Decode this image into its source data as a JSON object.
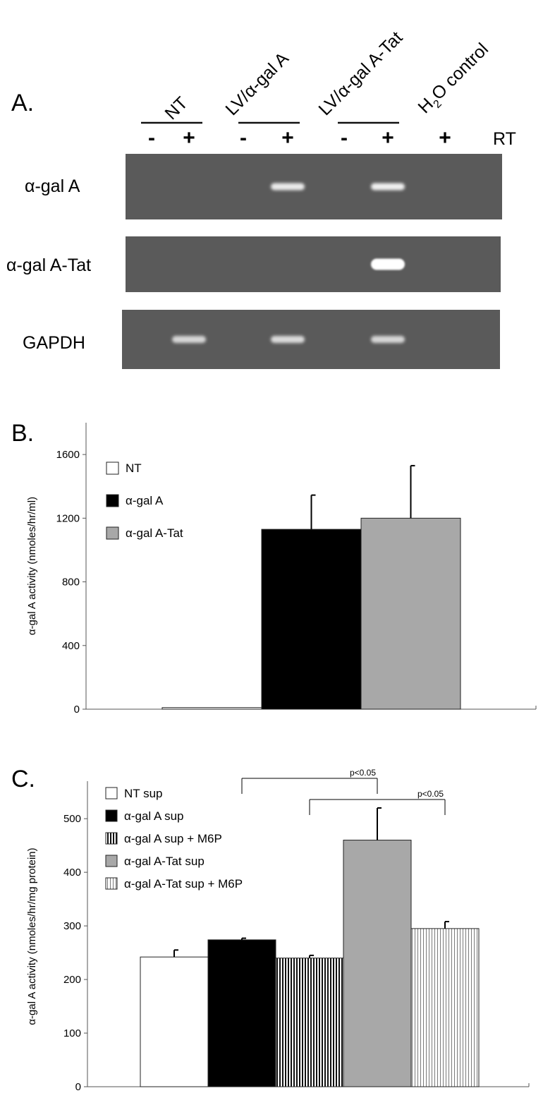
{
  "panel_a": {
    "letter": "A.",
    "groups": [
      "NT",
      "LV/α-gal A",
      "LV/α-gal A-Tat"
    ],
    "water_control": {
      "prefix": "H",
      "subscript": "2",
      "suffix": "O control"
    },
    "rt_signs": [
      "-",
      "+",
      "-",
      "+",
      "-",
      "+",
      "+"
    ],
    "rt_label": "RT",
    "gels": [
      {
        "label": "α-gal A",
        "bands": [
          {
            "lane": 4,
            "intensity": 0.8
          },
          {
            "lane": 6,
            "intensity": 0.85
          }
        ]
      },
      {
        "label": "α-gal A-Tat",
        "bands": [
          {
            "lane": 6,
            "intensity": 1.0
          }
        ]
      },
      {
        "label": "GAPDH",
        "bands": [
          {
            "lane": 2,
            "intensity": 0.6
          },
          {
            "lane": 4,
            "intensity": 0.65
          },
          {
            "lane": 6,
            "intensity": 0.6
          }
        ]
      }
    ]
  },
  "chart_data": [
    {
      "panel": "B.",
      "type": "bar",
      "ylabel": "α-gal A activity (nmoles/hr/ml)",
      "ylim": [
        0,
        1800
      ],
      "yticks": [
        0,
        400,
        800,
        1200,
        1600
      ],
      "legend_placement": "top-left",
      "series": [
        {
          "name": "NT",
          "value": 10,
          "error": 0,
          "fill": "white"
        },
        {
          "name": "α-gal A",
          "value": 1130,
          "error": 215,
          "fill": "black"
        },
        {
          "name": "α-gal A-Tat",
          "value": 1200,
          "error": 330,
          "fill": "gray"
        }
      ]
    },
    {
      "panel": "C.",
      "type": "bar",
      "ylabel": "α-gal A activity (nmoles/hr/mg protein)",
      "ylim": [
        0,
        570
      ],
      "yticks": [
        0,
        100,
        200,
        300,
        400,
        500
      ],
      "legend_placement": "top-left",
      "series": [
        {
          "name": "NT sup",
          "value": 242,
          "error": 13,
          "fill": "white"
        },
        {
          "name": "α-gal A sup",
          "value": 274,
          "error": 3,
          "fill": "black"
        },
        {
          "name": "α-gal A sup + M6P",
          "value": 240,
          "error": 5,
          "fill": "dense-stripes"
        },
        {
          "name": "α-gal A-Tat sup",
          "value": 460,
          "error": 60,
          "fill": "gray"
        },
        {
          "name": "α-gal A-Tat sup + M6P",
          "value": 295,
          "error": 13,
          "fill": "light-stripes"
        }
      ],
      "significance": [
        {
          "from": 1,
          "to": 3,
          "label": "p<0.05"
        },
        {
          "from": 2,
          "to": 4,
          "label": "p<0.05"
        }
      ]
    }
  ]
}
